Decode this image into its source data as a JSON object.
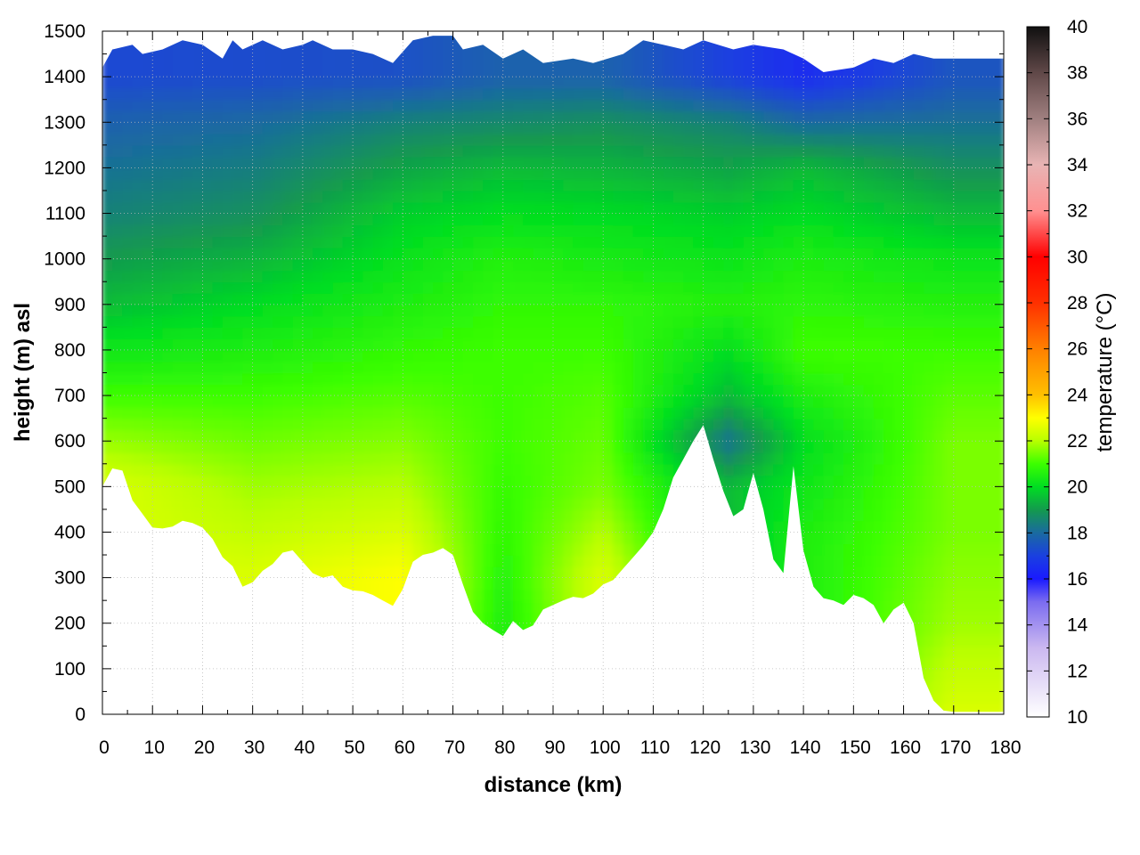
{
  "chart_data": {
    "type": "heatmap",
    "subtype": "cross-section temperature contour plot",
    "title": "",
    "xlabel": "distance (km)",
    "ylabel": "height (m) asl",
    "colorbar_label": "temperature (°C)",
    "xlim": [
      0,
      180
    ],
    "ylim": [
      0,
      1500
    ],
    "clim": [
      10,
      40
    ],
    "xticks": [
      "0",
      "10",
      "20",
      "30",
      "40",
      "50",
      "60",
      "70",
      "80",
      "90",
      "100",
      "110",
      "120",
      "130",
      "140",
      "150",
      "160",
      "170",
      "180"
    ],
    "yticks": [
      "0",
      "100",
      "200",
      "300",
      "400",
      "500",
      "600",
      "700",
      "800",
      "900",
      "1000",
      "1100",
      "1200",
      "1300",
      "1400",
      "1500"
    ],
    "cticks": [
      "10",
      "12",
      "14",
      "16",
      "18",
      "20",
      "22",
      "24",
      "26",
      "28",
      "30",
      "32",
      "34",
      "36",
      "38",
      "40"
    ],
    "grid": true,
    "colormap": [
      {
        "t": 10,
        "color": "#ffffff"
      },
      {
        "t": 13,
        "color": "#cbb8f0"
      },
      {
        "t": 15,
        "color": "#7b6cf0"
      },
      {
        "t": 16,
        "color": "#1a1aff"
      },
      {
        "t": 17,
        "color": "#1a40e0"
      },
      {
        "t": 18,
        "color": "#1a6aa0"
      },
      {
        "t": 19,
        "color": "#139a4e"
      },
      {
        "t": 20,
        "color": "#00dd22"
      },
      {
        "t": 21,
        "color": "#3cff00"
      },
      {
        "t": 22,
        "color": "#b8ff00"
      },
      {
        "t": 23,
        "color": "#ffff00"
      },
      {
        "t": 24,
        "color": "#ffc000"
      },
      {
        "t": 26,
        "color": "#ff8000"
      },
      {
        "t": 28,
        "color": "#ff3000"
      },
      {
        "t": 30,
        "color": "#ff0000"
      },
      {
        "t": 32,
        "color": "#ff9090"
      },
      {
        "t": 34,
        "color": "#e8b4b4"
      },
      {
        "t": 36,
        "color": "#a08080"
      },
      {
        "t": 38,
        "color": "#604848"
      },
      {
        "t": 40,
        "color": "#101010"
      }
    ],
    "terrain_km_m": [
      [
        0,
        500
      ],
      [
        2,
        540
      ],
      [
        4,
        535
      ],
      [
        6,
        470
      ],
      [
        8,
        440
      ],
      [
        10,
        410
      ],
      [
        12,
        408
      ],
      [
        14,
        412
      ],
      [
        16,
        425
      ],
      [
        18,
        420
      ],
      [
        20,
        410
      ],
      [
        22,
        385
      ],
      [
        24,
        345
      ],
      [
        26,
        325
      ],
      [
        28,
        280
      ],
      [
        30,
        290
      ],
      [
        32,
        315
      ],
      [
        34,
        330
      ],
      [
        36,
        355
      ],
      [
        38,
        360
      ],
      [
        40,
        335
      ],
      [
        42,
        310
      ],
      [
        44,
        300
      ],
      [
        46,
        305
      ],
      [
        48,
        280
      ],
      [
        50,
        272
      ],
      [
        52,
        270
      ],
      [
        54,
        262
      ],
      [
        56,
        250
      ],
      [
        58,
        238
      ],
      [
        60,
        275
      ],
      [
        62,
        335
      ],
      [
        64,
        350
      ],
      [
        66,
        355
      ],
      [
        68,
        365
      ],
      [
        70,
        350
      ],
      [
        72,
        285
      ],
      [
        74,
        225
      ],
      [
        76,
        200
      ],
      [
        78,
        185
      ],
      [
        80,
        172
      ],
      [
        82,
        205
      ],
      [
        84,
        185
      ],
      [
        86,
        195
      ],
      [
        88,
        230
      ],
      [
        90,
        240
      ],
      [
        92,
        250
      ],
      [
        94,
        258
      ],
      [
        96,
        255
      ],
      [
        98,
        265
      ],
      [
        100,
        285
      ],
      [
        102,
        295
      ],
      [
        104,
        320
      ],
      [
        106,
        345
      ],
      [
        108,
        370
      ],
      [
        110,
        400
      ],
      [
        112,
        450
      ],
      [
        114,
        520
      ],
      [
        116,
        560
      ],
      [
        118,
        600
      ],
      [
        120,
        635
      ],
      [
        122,
        560
      ],
      [
        124,
        490
      ],
      [
        126,
        435
      ],
      [
        128,
        450
      ],
      [
        130,
        530
      ],
      [
        132,
        450
      ],
      [
        134,
        340
      ],
      [
        136,
        310
      ],
      [
        138,
        545
      ],
      [
        140,
        360
      ],
      [
        142,
        280
      ],
      [
        144,
        255
      ],
      [
        146,
        250
      ],
      [
        148,
        240
      ],
      [
        150,
        262
      ],
      [
        152,
        255
      ],
      [
        154,
        240
      ],
      [
        156,
        200
      ],
      [
        158,
        230
      ],
      [
        160,
        245
      ],
      [
        162,
        200
      ],
      [
        164,
        80
      ],
      [
        166,
        30
      ],
      [
        168,
        8
      ],
      [
        170,
        5
      ],
      [
        172,
        5
      ],
      [
        176,
        5
      ],
      [
        180,
        5
      ]
    ],
    "top_boundary_km_m": [
      [
        0,
        1420
      ],
      [
        2,
        1460
      ],
      [
        6,
        1470
      ],
      [
        8,
        1450
      ],
      [
        12,
        1460
      ],
      [
        16,
        1480
      ],
      [
        20,
        1470
      ],
      [
        24,
        1440
      ],
      [
        26,
        1480
      ],
      [
        28,
        1460
      ],
      [
        32,
        1480
      ],
      [
        36,
        1460
      ],
      [
        40,
        1470
      ],
      [
        42,
        1480
      ],
      [
        46,
        1460
      ],
      [
        50,
        1460
      ],
      [
        54,
        1450
      ],
      [
        58,
        1430
      ],
      [
        62,
        1480
      ],
      [
        66,
        1490
      ],
      [
        70,
        1490
      ],
      [
        72,
        1460
      ],
      [
        76,
        1470
      ],
      [
        80,
        1440
      ],
      [
        84,
        1460
      ],
      [
        88,
        1430
      ],
      [
        94,
        1440
      ],
      [
        98,
        1430
      ],
      [
        104,
        1450
      ],
      [
        108,
        1480
      ],
      [
        112,
        1470
      ],
      [
        116,
        1460
      ],
      [
        120,
        1480
      ],
      [
        126,
        1460
      ],
      [
        130,
        1470
      ],
      [
        136,
        1460
      ],
      [
        140,
        1440
      ],
      [
        144,
        1410
      ],
      [
        150,
        1420
      ],
      [
        154,
        1440
      ],
      [
        158,
        1430
      ],
      [
        162,
        1450
      ],
      [
        166,
        1440
      ],
      [
        168,
        1440
      ],
      [
        180,
        1440
      ]
    ],
    "temperature_samples_degC": [
      {
        "x": 0,
        "values_at_heights": {
          "500": 22.5,
          "700": 21.0,
          "900": 19.5,
          "1100": 18.5,
          "1300": 17.8,
          "1400": 17.2
        }
      },
      {
        "x": 30,
        "values_at_heights": {
          "300": 22.5,
          "500": 21.8,
          "700": 21.0,
          "900": 20.0,
          "1100": 18.8,
          "1300": 18.0,
          "1400": 17.3
        }
      },
      {
        "x": 60,
        "values_at_heights": {
          "300": 23.0,
          "500": 22.0,
          "700": 21.2,
          "900": 20.5,
          "1100": 19.8,
          "1300": 18.5,
          "1400": 17.4
        }
      },
      {
        "x": 80,
        "values_at_heights": {
          "200": 20.5,
          "400": 20.8,
          "600": 21.0,
          "800": 21.0,
          "1000": 20.6,
          "1200": 19.5,
          "1400": 17.8
        }
      },
      {
        "x": 100,
        "values_at_heights": {
          "300": 22.5,
          "500": 21.5,
          "700": 21.2,
          "900": 20.8,
          "1100": 20.0,
          "1300": 18.8,
          "1400": 17.8
        }
      },
      {
        "x": 125,
        "values_at_heights": {
          "500": 19.5,
          "600": 18.2,
          "700": 19.5,
          "900": 20.6,
          "1100": 19.8,
          "1300": 18.5,
          "1400": 17.0
        }
      },
      {
        "x": 140,
        "values_at_heights": {
          "400": 20.5,
          "600": 20.0,
          "800": 21.0,
          "1000": 20.5,
          "1200": 19.5,
          "1400": 16.5
        }
      },
      {
        "x": 170,
        "values_at_heights": {
          "0": 22.5,
          "200": 21.8,
          "400": 21.5,
          "600": 21.5,
          "800": 21.0,
          "1000": 20.2,
          "1200": 18.8,
          "1400": 17.5
        }
      }
    ]
  }
}
